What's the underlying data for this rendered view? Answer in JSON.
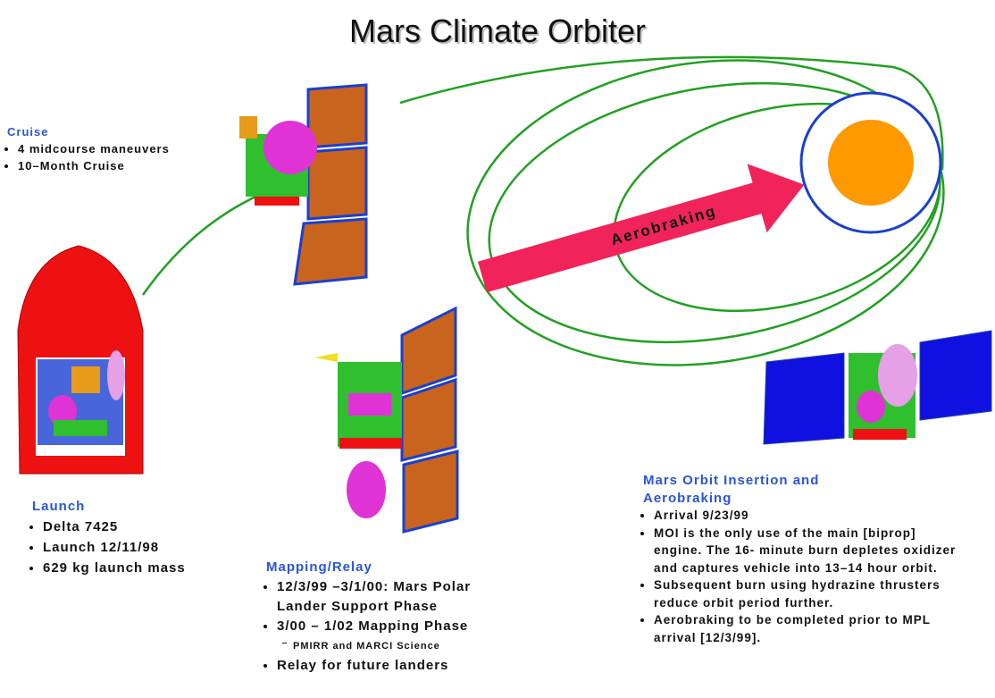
{
  "title": "Mars Climate Orbiter",
  "cruise": {
    "heading": "Cruise",
    "items": [
      "4 midcourse maneuvers",
      "10–Month Cruise"
    ]
  },
  "launch": {
    "heading": "Launch",
    "items": [
      "Delta 7425",
      "Launch 12/11/98",
      "629 kg launch mass"
    ]
  },
  "arrow_label": "Aerobraking",
  "mapping": {
    "heading": "Mapping/Relay",
    "items": [
      "12/3/99 –3/1/00: Mars Polar Lander Support Phase",
      "3/00 – 1/02  Mapping Phase",
      "Relay for future landers"
    ],
    "subitem": "PMIRR and MARCI Science"
  },
  "moi": {
    "heading": "Mars Orbit Insertion and Aerobraking",
    "items": [
      "Arrival 9/23/99",
      "MOI is the only use of the main [biprop] engine.  The 16- minute burn depletes oxidizer and captures vehicle into 13–14  hour orbit.",
      "Subsequent burn using hydrazine thrusters reduce orbit period further.",
      "Aerobraking to be completed prior to MPL arrival [12/3/99]."
    ]
  }
}
